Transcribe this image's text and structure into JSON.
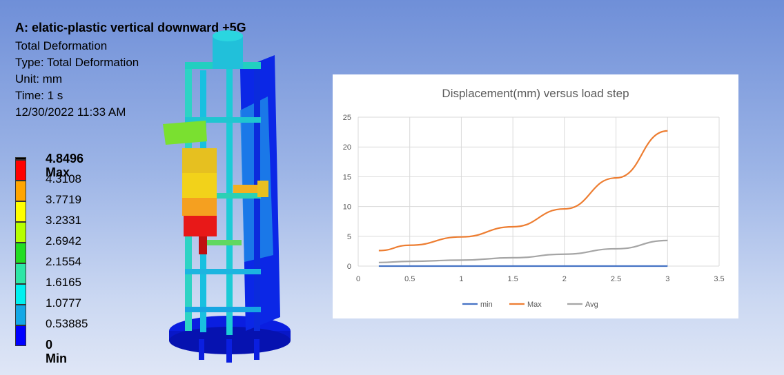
{
  "result_info": {
    "title": "A: elatic-plastic vertical downward +5G",
    "lines": [
      "Total Deformation",
      "Type: Total Deformation",
      "Unit: mm",
      "Time: 1 s",
      "12/30/2022 11:33 AM"
    ]
  },
  "legend": {
    "levels": [
      {
        "label": "4.8496 Max",
        "color": "#ff0000",
        "bold": true
      },
      {
        "label": "4.3108",
        "color": "#ff0000",
        "bold": false
      },
      {
        "label": "3.7719",
        "color": "#ffa500",
        "bold": false
      },
      {
        "label": "3.2331",
        "color": "#ffff00",
        "bold": false
      },
      {
        "label": "2.6942",
        "color": "#b5ff00",
        "bold": false
      },
      {
        "label": "2.1554",
        "color": "#22dd22",
        "bold": false
      },
      {
        "label": "1.6165",
        "color": "#2ee6a6",
        "bold": false
      },
      {
        "label": "1.0777",
        "color": "#00f0f0",
        "bold": false
      },
      {
        "label": "0.53885",
        "color": "#14a8e6",
        "bold": false
      },
      {
        "label": "0 Min",
        "color": "#0000ff",
        "bold": true
      }
    ]
  },
  "chart_data": {
    "type": "line",
    "title": "Displacement(mm) versus load step",
    "xlabel": "",
    "ylabel": "",
    "xlim": [
      0,
      3.5
    ],
    "ylim": [
      0,
      25
    ],
    "xticks": [
      "0",
      "0.5",
      "1",
      "1.5",
      "2",
      "2.5",
      "3",
      "3.5"
    ],
    "yticks": [
      "0",
      "5",
      "10",
      "15",
      "20",
      "25"
    ],
    "grid": true,
    "legend_position": "bottom",
    "series": [
      {
        "name": "min",
        "color": "#4472c4",
        "x": [
          0.2,
          0.5,
          1,
          1.5,
          2,
          2.5,
          3
        ],
        "y": [
          0,
          0,
          0,
          0,
          0,
          0,
          0
        ]
      },
      {
        "name": "Max",
        "color": "#ed7d31",
        "x": [
          0.2,
          0.5,
          1,
          1.5,
          2,
          2.5,
          3
        ],
        "y": [
          2.6,
          3.5,
          4.9,
          6.6,
          9.6,
          14.8,
          22.7
        ]
      },
      {
        "name": "Avg",
        "color": "#a5a5a5",
        "x": [
          0.2,
          0.5,
          1,
          1.5,
          2,
          2.5,
          3
        ],
        "y": [
          0.6,
          0.8,
          1.0,
          1.4,
          2.0,
          2.9,
          4.3
        ]
      }
    ]
  }
}
